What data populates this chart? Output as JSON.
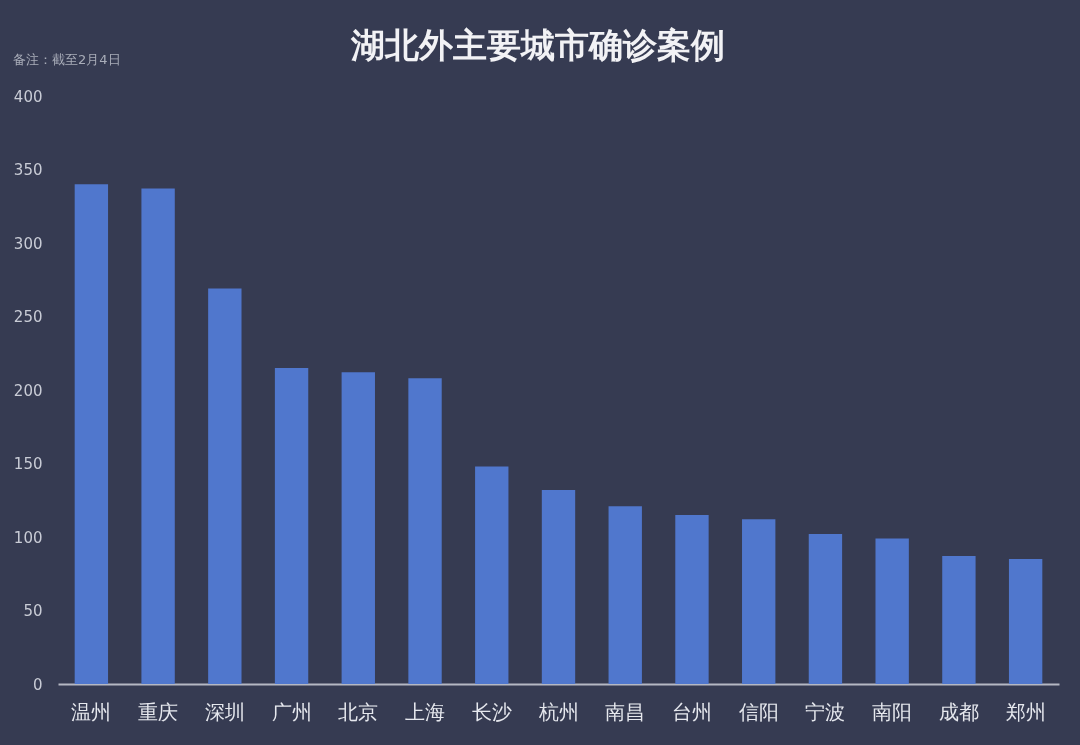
{
  "chart_data": {
    "type": "bar",
    "title": "湖北外主要城市确诊案例",
    "annotations": [
      "备注：截至2月4日"
    ],
    "categories": [
      "温州",
      "重庆",
      "深圳",
      "广州",
      "北京",
      "上海",
      "长沙",
      "杭州",
      "南昌",
      "台州",
      "信阳",
      "宁波",
      "南阳",
      "成都",
      "郑州"
    ],
    "values": [
      340,
      337,
      269,
      215,
      212,
      208,
      148,
      132,
      121,
      115,
      112,
      102,
      99,
      87,
      85
    ],
    "color": "#5077cd",
    "ylim": [
      0,
      400
    ],
    "yticks": [
      0,
      50,
      100,
      150,
      200,
      250,
      300,
      350,
      400
    ]
  }
}
